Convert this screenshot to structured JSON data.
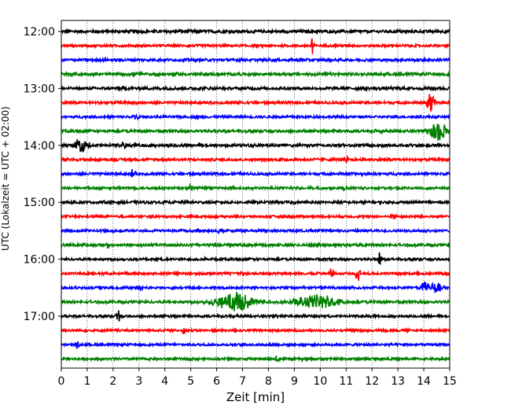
{
  "chart_data": {
    "type": "line",
    "xlabel": "Zeit  [min]",
    "ylabel": "UTC (Lokalzeit = UTC + 02:00)",
    "xlim": [
      0,
      15
    ],
    "xticks": [
      "0",
      "1",
      "2",
      "3",
      "4",
      "5",
      "6",
      "7",
      "8",
      "9",
      "10",
      "11",
      "12",
      "13",
      "14",
      "15"
    ],
    "yticks": [
      "12:00",
      "13:00",
      "14:00",
      "15:00",
      "16:00",
      "17:00"
    ],
    "grid": "vertical dotted at each minute",
    "trace_interval_minutes": 15,
    "first_trace_utc": "12:00",
    "trace_colors": [
      "#000000",
      "#ff0000",
      "#0000ff",
      "#008000"
    ],
    "traces": [
      {
        "start": "12:00",
        "noise": 0.55,
        "events": [
          {
            "t": 4.5,
            "amp": 0.25,
            "dur": 0.6
          }
        ]
      },
      {
        "start": "12:15",
        "noise": 0.45,
        "events": [
          {
            "t": 9.7,
            "amp": 2.2,
            "dur": 0.08
          }
        ]
      },
      {
        "start": "12:30",
        "noise": 0.5,
        "events": []
      },
      {
        "start": "12:45",
        "noise": 0.55,
        "events": [
          {
            "t": 3.0,
            "amp": 0.3,
            "dur": 0.5
          }
        ]
      },
      {
        "start": "13:00",
        "noise": 0.55,
        "events": []
      },
      {
        "start": "13:15",
        "noise": 0.5,
        "events": [
          {
            "t": 14.25,
            "amp": 3.0,
            "dur": 0.2
          }
        ]
      },
      {
        "start": "13:30",
        "noise": 0.45,
        "events": [
          {
            "t": 2.9,
            "amp": 0.8,
            "dur": 0.2
          }
        ]
      },
      {
        "start": "13:45",
        "noise": 0.5,
        "events": [
          {
            "t": 14.55,
            "amp": 2.6,
            "dur": 0.45
          },
          {
            "t": 12.3,
            "amp": 0.6,
            "dur": 0.2
          }
        ]
      },
      {
        "start": "14:00",
        "noise": 0.55,
        "events": [
          {
            "t": 0.75,
            "amp": 1.8,
            "dur": 0.4
          },
          {
            "t": 2.45,
            "amp": 0.8,
            "dur": 0.12
          }
        ]
      },
      {
        "start": "14:15",
        "noise": 0.5,
        "events": [
          {
            "t": 11.0,
            "amp": 0.9,
            "dur": 0.12
          }
        ]
      },
      {
        "start": "14:30",
        "noise": 0.5,
        "events": [
          {
            "t": 2.75,
            "amp": 1.0,
            "dur": 0.15
          }
        ]
      },
      {
        "start": "14:45",
        "noise": 0.45,
        "events": [
          {
            "t": 5.0,
            "amp": 0.7,
            "dur": 0.15
          },
          {
            "t": 10.9,
            "amp": 0.5,
            "dur": 0.15
          }
        ]
      },
      {
        "start": "15:00",
        "noise": 0.5,
        "events": []
      },
      {
        "start": "15:15",
        "noise": 0.45,
        "events": [
          {
            "t": 12.8,
            "amp": 0.7,
            "dur": 0.15
          }
        ]
      },
      {
        "start": "15:30",
        "noise": 0.45,
        "events": [
          {
            "t": 6.1,
            "amp": 0.6,
            "dur": 0.12
          },
          {
            "t": 8.2,
            "amp": 0.5,
            "dur": 0.12
          }
        ]
      },
      {
        "start": "15:45",
        "noise": 0.5,
        "events": [
          {
            "t": 1.8,
            "amp": 0.8,
            "dur": 0.12
          },
          {
            "t": 6.5,
            "amp": 0.8,
            "dur": 0.12
          }
        ]
      },
      {
        "start": "16:00",
        "noise": 0.45,
        "events": [
          {
            "t": 12.3,
            "amp": 2.0,
            "dur": 0.1
          },
          {
            "t": 5.6,
            "amp": 0.4,
            "dur": 0.12
          }
        ]
      },
      {
        "start": "16:15",
        "noise": 0.45,
        "events": [
          {
            "t": 10.45,
            "amp": 1.5,
            "dur": 0.12
          },
          {
            "t": 11.45,
            "amp": 2.2,
            "dur": 0.12
          },
          {
            "t": 7.0,
            "amp": 0.6,
            "dur": 0.15
          }
        ]
      },
      {
        "start": "16:30",
        "noise": 0.45,
        "events": [
          {
            "t": 14.1,
            "amp": 1.6,
            "dur": 0.3
          },
          {
            "t": 14.5,
            "amp": 1.5,
            "dur": 0.3
          },
          {
            "t": 3.0,
            "amp": 0.5,
            "dur": 0.2
          }
        ]
      },
      {
        "start": "16:45",
        "noise": 0.5,
        "events": [
          {
            "t": 6.7,
            "amp": 2.4,
            "dur": 1.0
          },
          {
            "t": 9.9,
            "amp": 1.8,
            "dur": 1.2
          }
        ]
      },
      {
        "start": "17:00",
        "noise": 0.45,
        "events": [
          {
            "t": 2.2,
            "amp": 1.6,
            "dur": 0.1
          },
          {
            "t": 8.3,
            "amp": 0.3,
            "dur": 0.2
          }
        ]
      },
      {
        "start": "17:15",
        "noise": 0.45,
        "events": [
          {
            "t": 4.7,
            "amp": 0.8,
            "dur": 0.15
          }
        ]
      },
      {
        "start": "17:30",
        "noise": 0.45,
        "events": [
          {
            "t": 0.6,
            "amp": 1.2,
            "dur": 0.1
          }
        ]
      },
      {
        "start": "17:45",
        "noise": 0.45,
        "events": [
          {
            "t": 8.35,
            "amp": 1.6,
            "dur": 0.12
          }
        ]
      }
    ]
  }
}
